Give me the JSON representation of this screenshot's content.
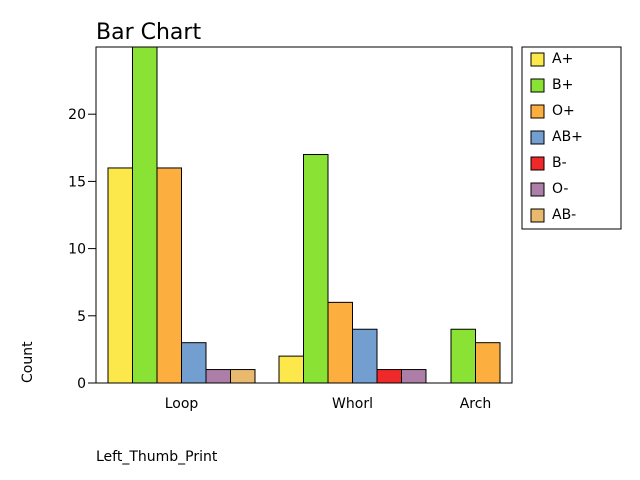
{
  "chart_data": {
    "type": "bar",
    "title": "Bar Chart",
    "xlabel": "Left_Thumb_Print",
    "ylabel": "Count",
    "categories": [
      "Loop",
      "Whorl",
      "Arch"
    ],
    "yticks": [
      0,
      5,
      10,
      15,
      20
    ],
    "ylim": [
      0,
      25
    ],
    "grid": false,
    "legend_position": "right",
    "series": [
      {
        "name": "A+",
        "color": "#fde84b",
        "values": [
          16,
          2,
          0
        ]
      },
      {
        "name": "B+",
        "color": "#8ae234",
        "values": [
          25,
          17,
          4
        ]
      },
      {
        "name": "O+",
        "color": "#fcaf3e",
        "values": [
          16,
          6,
          3
        ]
      },
      {
        "name": "AB+",
        "color": "#729fcf",
        "values": [
          3,
          4,
          0
        ]
      },
      {
        "name": "B-",
        "color": "#ef2929",
        "values": [
          0,
          1,
          0
        ]
      },
      {
        "name": "O-",
        "color": "#ad7fa8",
        "values": [
          1,
          1,
          0
        ]
      },
      {
        "name": "AB-",
        "color": "#e9b96e",
        "values": [
          1,
          0,
          0
        ]
      }
    ]
  }
}
